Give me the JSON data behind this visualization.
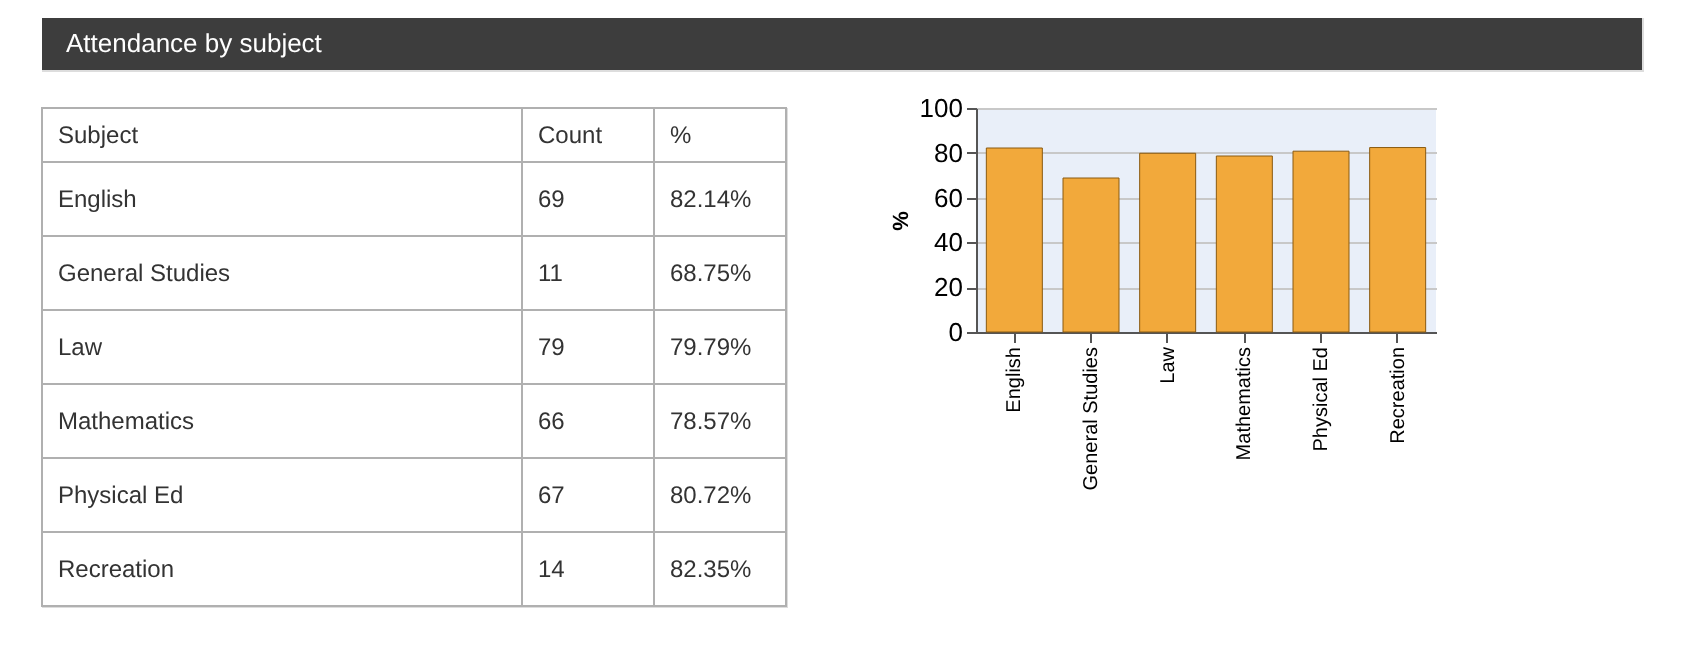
{
  "chart_data": [
    {
      "type": "other",
      "title": "Attendance by subject",
      "annotations": [
        "Subject",
        "Count",
        "%",
        "English",
        "69",
        "82.14%",
        "General Studies",
        "11",
        "68.75%",
        "Law",
        "79",
        "79.79%",
        "Mathematics",
        "66",
        "78.57%",
        "Physical Ed",
        "67",
        "80.72%",
        "Recreation",
        "14",
        "82.35%"
      ]
    },
    {
      "type": "bar",
      "categories": [
        "English",
        "General Studies",
        "Law",
        "Mathematics",
        "Physical Ed",
        "Recreation"
      ],
      "values": [
        82.14,
        68.75,
        79.79,
        78.57,
        80.72,
        82.35
      ],
      "color": "#f2a93b",
      "ylabel": "%",
      "ylim": [
        0,
        100
      ],
      "yticks": [
        0,
        20,
        40,
        60,
        80,
        100
      ],
      "grid": "y"
    }
  ]
}
